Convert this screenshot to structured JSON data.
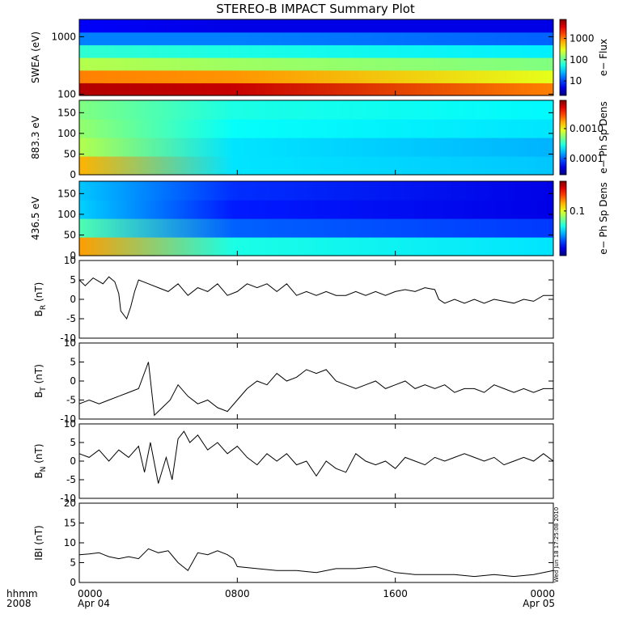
{
  "chart_data": {
    "title": "STEREO-B IMPACT Summary Plot",
    "time_axis": {
      "corner_labels": [
        "hhmm",
        "2008"
      ],
      "ticks": [
        {
          "hour": 0,
          "lines": [
            "0000",
            "Apr 04"
          ]
        },
        {
          "hour": 8,
          "lines": [
            "0800"
          ]
        },
        {
          "hour": 16,
          "lines": [
            "1600"
          ]
        },
        {
          "hour": 24,
          "lines": [
            "0000",
            "Apr 05"
          ]
        }
      ],
      "range_hours": [
        0,
        24
      ]
    },
    "stamp": "Wed Jun 18 17:25:08 2010",
    "spectrograms": [
      {
        "type": "heatmap",
        "ylabel": "SWEA (eV)",
        "ylog": true,
        "ylim": [
          95,
          2000
        ],
        "yticks": [
          100,
          1000
        ],
        "ytick_labels": [
          "100",
          "1000"
        ],
        "colorbar_label": "e− Flux",
        "colorbar_ticks": [
          "1000",
          "100",
          "10"
        ],
        "colorbar_tick_fracs": [
          0.75,
          0.47,
          0.19
        ],
        "hours": [
          0,
          7.8,
          24
        ],
        "rows_low_to_high": [
          [
            0.95,
            0.93,
            0.75
          ],
          [
            0.75,
            0.73,
            0.6
          ],
          [
            0.55,
            0.53,
            0.5
          ],
          [
            0.42,
            0.4,
            0.36
          ],
          [
            0.25,
            0.25,
            0.22
          ],
          [
            0.12,
            0.1,
            0.1
          ]
        ]
      },
      {
        "type": "heatmap",
        "ylabel": "883.3 eV",
        "ylim": [
          0,
          180
        ],
        "yticks": [
          0,
          50,
          100,
          150
        ],
        "colorbar_label": "e− Ph Sp Dens",
        "colorbar_ticks": [
          "0.0010",
          "0.0001"
        ],
        "colorbar_tick_fracs": [
          0.62,
          0.22
        ],
        "hours": [
          0,
          7.8,
          24
        ],
        "rows_low_to_high": [
          [
            0.7,
            0.35,
            0.32
          ],
          [
            0.55,
            0.35,
            0.3
          ],
          [
            0.52,
            0.38,
            0.35
          ],
          [
            0.5,
            0.4,
            0.37
          ]
        ]
      },
      {
        "type": "heatmap",
        "ylabel": "436.5 eV",
        "ylim": [
          0,
          180
        ],
        "yticks": [
          0,
          50,
          100,
          150
        ],
        "colorbar_label": "e− Ph Sp Dens",
        "colorbar_ticks": [
          "0.1"
        ],
        "colorbar_tick_fracs": [
          0.6
        ],
        "hours": [
          0,
          7.8,
          24
        ],
        "rows_low_to_high": [
          [
            0.72,
            0.4,
            0.35
          ],
          [
            0.45,
            0.22,
            0.18
          ],
          [
            0.33,
            0.15,
            0.1
          ],
          [
            0.32,
            0.17,
            0.1
          ]
        ]
      }
    ],
    "series": [
      {
        "type": "line",
        "name": "BR",
        "ylabel": "B",
        "ylabel_sub": "R",
        "ylabel_unit": "(nT)",
        "ylim": [
          -10,
          10
        ],
        "yticks": [
          -10,
          -5,
          0,
          5,
          10
        ],
        "x": [
          0,
          0.3,
          0.7,
          1.2,
          1.5,
          1.8,
          2.0,
          2.1,
          2.4,
          2.6,
          2.8,
          3.0,
          3.5,
          4,
          4.5,
          5,
          5.5,
          6,
          6.5,
          7,
          7.5,
          8,
          8.5,
          9,
          9.5,
          10,
          10.5,
          11,
          11.5,
          12,
          12.5,
          13,
          13.5,
          14,
          14.5,
          15,
          15.5,
          16,
          16.5,
          17,
          17.5,
          18,
          18.2,
          18.5,
          19,
          19.5,
          20,
          20.5,
          21,
          21.5,
          22,
          22.5,
          23,
          23.5,
          24
        ],
        "y": [
          5,
          3.5,
          5.5,
          4,
          5.8,
          4.5,
          1.5,
          -3,
          -5,
          -2,
          2,
          5,
          4,
          3,
          2,
          4,
          1,
          3,
          2,
          4,
          1,
          2,
          4,
          3,
          4,
          2,
          4,
          1,
          2,
          1,
          2,
          1,
          1,
          2,
          1,
          2,
          1,
          2,
          2.5,
          2,
          3,
          2.5,
          0,
          -1,
          0,
          -1,
          0,
          -1,
          0,
          -0.5,
          -1,
          0,
          -0.5,
          1,
          1
        ]
      },
      {
        "type": "line",
        "name": "BT",
        "ylabel": "B",
        "ylabel_sub": "T",
        "ylabel_unit": "(nT)",
        "ylim": [
          -10,
          10
        ],
        "yticks": [
          -10,
          -5,
          0,
          5,
          10
        ],
        "x": [
          0,
          0.5,
          1,
          1.5,
          2,
          2.5,
          3,
          3.5,
          3.8,
          4.2,
          4.6,
          5,
          5.5,
          6,
          6.5,
          7,
          7.5,
          8,
          8.5,
          9,
          9.5,
          10,
          10.5,
          11,
          11.5,
          12,
          12.5,
          13,
          13.5,
          14,
          14.5,
          15,
          15.5,
          16,
          16.5,
          17,
          17.5,
          18,
          18.5,
          19,
          19.5,
          20,
          20.5,
          21,
          21.5,
          22,
          22.5,
          23,
          23.5,
          24
        ],
        "y": [
          -6,
          -5,
          -6,
          -5,
          -4,
          -3,
          -2,
          5,
          -9,
          -7,
          -5,
          -1,
          -4,
          -6,
          -5,
          -7,
          -8,
          -5,
          -2,
          0,
          -1,
          2,
          0,
          1,
          3,
          2,
          3,
          0,
          -1,
          -2,
          -1,
          0,
          -2,
          -1,
          0,
          -2,
          -1,
          -2,
          -1,
          -3,
          -2,
          -2,
          -3,
          -1,
          -2,
          -3,
          -2,
          -3,
          -2,
          -2
        ]
      },
      {
        "type": "line",
        "name": "BN",
        "ylabel": "B",
        "ylabel_sub": "N",
        "ylabel_unit": "(nT)",
        "ylim": [
          -10,
          10
        ],
        "yticks": [
          -10,
          -5,
          0,
          5,
          10
        ],
        "x": [
          0,
          0.5,
          1,
          1.5,
          2,
          2.5,
          3,
          3.3,
          3.6,
          4,
          4.4,
          4.7,
          5,
          5.3,
          5.6,
          6,
          6.5,
          7,
          7.5,
          8,
          8.5,
          9,
          9.5,
          10,
          10.5,
          11,
          11.5,
          12,
          12.5,
          13,
          13.5,
          14,
          14.5,
          15,
          15.5,
          16,
          16.5,
          17,
          17.5,
          18,
          18.5,
          19,
          19.5,
          20,
          20.5,
          21,
          21.5,
          22,
          22.5,
          23,
          23.5,
          24
        ],
        "y": [
          2,
          1,
          3,
          0,
          3,
          1,
          4,
          -3,
          5,
          -6,
          1,
          -5,
          6,
          8,
          5,
          7,
          3,
          5,
          2,
          4,
          1,
          -1,
          2,
          0,
          2,
          -1,
          0,
          -4,
          0,
          -2,
          -3,
          2,
          0,
          -1,
          0,
          -2,
          1,
          0,
          -1,
          1,
          0,
          1,
          2,
          1,
          0,
          1,
          -1,
          0,
          1,
          0,
          2,
          0
        ]
      },
      {
        "type": "line",
        "name": "|B|",
        "ylabel": "IBI",
        "ylabel_unit": "(nT)",
        "ylim": [
          0,
          20
        ],
        "yticks": [
          0,
          5,
          10,
          15,
          20
        ],
        "x": [
          0,
          0.5,
          1,
          1.5,
          2,
          2.5,
          3,
          3.5,
          4,
          4.5,
          5,
          5.5,
          6,
          6.5,
          7,
          7.5,
          7.8,
          8,
          9,
          10,
          11,
          12,
          13,
          14,
          15,
          16,
          17,
          18,
          19,
          20,
          21,
          22,
          23,
          24
        ],
        "y": [
          7,
          7.2,
          7.5,
          6.5,
          6,
          6.5,
          6,
          8.5,
          7.5,
          8,
          5,
          3,
          7.5,
          7,
          8,
          7,
          6,
          4,
          3.5,
          3,
          3,
          2.5,
          3.5,
          3.5,
          4,
          2.5,
          2,
          2,
          2,
          1.5,
          2,
          1.5,
          2,
          3
        ]
      }
    ]
  }
}
